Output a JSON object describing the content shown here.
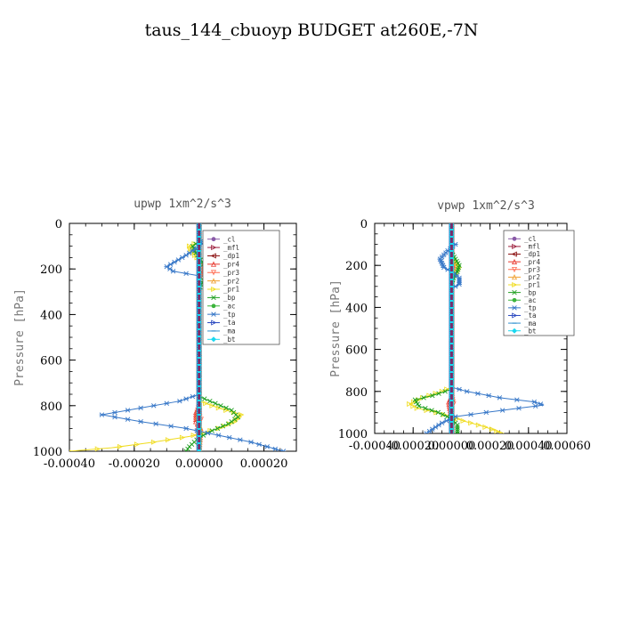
{
  "title": "taus_144_cbuoyp  BUDGET at260E,-7N",
  "legend_labels": [
    "_cl",
    "_mfl",
    "_dp1",
    "_pr4",
    "_pr3",
    "_pr2",
    "_pr1",
    "_bp",
    "_ac",
    "_tp",
    "_ta",
    "_ma",
    "_bt"
  ],
  "chart_data": [
    {
      "type": "line",
      "title": "upwp   1xm^2/s^3",
      "xlabel": "",
      "ylabel": "Pressure [hPa]",
      "xlim": [
        -0.0004,
        0.0003
      ],
      "ylim": [
        1000,
        0
      ],
      "x_ticks": [
        "-0.00040",
        "-0.00020",
        "0.00000",
        "0.00020"
      ],
      "y_ticks": [
        "0",
        "200",
        "400",
        "600",
        "800",
        "1000"
      ],
      "legend_position": "top-right",
      "series": [
        {
          "name": "_cl",
          "color": "#8a5aa8",
          "points": [
            [
              0,
              0
            ],
            [
              0,
              1000
            ]
          ]
        },
        {
          "name": "_mfl",
          "color": "#9c1e3c",
          "points": [
            [
              0,
              0
            ],
            [
              0,
              1000
            ]
          ]
        },
        {
          "name": "_dp1",
          "color": "#8b1010",
          "points": [
            [
              0,
              0
            ],
            [
              0,
              1000
            ]
          ]
        },
        {
          "name": "_pr4",
          "color": "#e8382e",
          "points": [
            [
              0,
              0
            ],
            [
              0,
              150
            ],
            [
              8e-06,
              175
            ],
            [
              5e-06,
              200
            ],
            [
              0,
              250
            ],
            [
              0,
              800
            ],
            [
              -1e-05,
              830
            ],
            [
              -1e-05,
              870
            ],
            [
              5e-06,
              900
            ],
            [
              3e-06,
              950
            ],
            [
              0,
              1000
            ]
          ]
        },
        {
          "name": "_pr3",
          "color": "#ff6a50",
          "points": [
            [
              0,
              0
            ],
            [
              0,
              170
            ],
            [
              1.2e-05,
              190
            ],
            [
              1.2e-05,
              210
            ],
            [
              6e-06,
              230
            ],
            [
              0,
              250
            ],
            [
              0,
              800
            ],
            [
              -6e-06,
              830
            ],
            [
              6e-06,
              860
            ],
            [
              -4e-06,
              890
            ],
            [
              0,
              1000
            ]
          ]
        },
        {
          "name": "_pr2",
          "color": "#f0a030",
          "points": [
            [
              0,
              0
            ],
            [
              0,
              800
            ],
            [
              -4e-06,
              850
            ],
            [
              4e-06,
              900
            ],
            [
              0,
              1000
            ]
          ]
        },
        {
          "name": "_pr1",
          "color": "#f0dc20",
          "points": [
            [
              0,
              0
            ],
            [
              0,
              80
            ],
            [
              -3e-05,
              100
            ],
            [
              -2e-05,
              130
            ],
            [
              0,
              160
            ],
            [
              2e-05,
              180
            ],
            [
              3e-05,
              210
            ],
            [
              2e-05,
              240
            ],
            [
              0,
              270
            ],
            [
              0,
              780
            ],
            [
              6e-05,
              810
            ],
            [
              0.00013,
              840
            ],
            [
              0.00011,
              870
            ],
            [
              6e-05,
              900
            ],
            [
              -3e-05,
              935
            ],
            [
              -0.00014,
              960
            ],
            [
              -0.00027,
              985
            ],
            [
              -0.0004,
              1000
            ]
          ]
        },
        {
          "name": "_bp",
          "color": "#20a020",
          "points": [
            [
              0,
              0
            ],
            [
              0,
              80
            ],
            [
              -2e-05,
              100
            ],
            [
              -1e-05,
              130
            ],
            [
              1e-05,
              170
            ],
            [
              2e-05,
              200
            ],
            [
              2e-05,
              230
            ],
            [
              1e-05,
              260
            ],
            [
              0,
              290
            ],
            [
              0,
              760
            ],
            [
              5e-05,
              790
            ],
            [
              0.0001,
              820
            ],
            [
              0.00012,
              850
            ],
            [
              9e-05,
              880
            ],
            [
              4e-05,
              910
            ],
            [
              0,
              940
            ],
            [
              -3e-05,
              980
            ],
            [
              -4e-05,
              1000
            ]
          ]
        },
        {
          "name": "_ac",
          "color": "#3cb43c",
          "points": [
            [
              0,
              0
            ],
            [
              0,
              1000
            ]
          ]
        },
        {
          "name": "_tp",
          "color": "#3878c8",
          "points": [
            [
              0,
              0
            ],
            [
              0,
              70
            ],
            [
              1e-05,
              90
            ],
            [
              -4e-05,
              140
            ],
            [
              -0.0001,
              190
            ],
            [
              -8e-05,
              210
            ],
            [
              0,
              230
            ],
            [
              0,
              250
            ],
            [
              0,
              750
            ],
            [
              -6e-05,
              780
            ],
            [
              -0.00018,
              810
            ],
            [
              -0.0003,
              840
            ],
            [
              -0.00018,
              870
            ],
            [
              -4e-05,
              900
            ],
            [
              6e-05,
              930
            ],
            [
              0.00016,
              960
            ],
            [
              0.00026,
              1000
            ]
          ]
        },
        {
          "name": "_ta",
          "color": "#2a48c0",
          "points": [
            [
              0,
              0
            ],
            [
              0,
              1000
            ]
          ]
        },
        {
          "name": "_ma",
          "color": "#3090d0",
          "points": [
            [
              0,
              0
            ],
            [
              0,
              1000
            ]
          ]
        },
        {
          "name": "_bt",
          "color": "#1ad8f0",
          "points": [
            [
              0,
              0
            ],
            [
              0,
              1000
            ]
          ]
        }
      ]
    },
    {
      "type": "line",
      "title": "vpwp   1xm^2/s^3",
      "xlabel": "",
      "ylabel": "Pressure [hPa]",
      "xlim": [
        -0.0004,
        0.0006
      ],
      "ylim": [
        1000,
        0
      ],
      "x_ticks": [
        "-0.00040",
        "-0.00020",
        "0.00000",
        "0.00020",
        "0.00040",
        "0.00060"
      ],
      "y_ticks": [
        "0",
        "200",
        "400",
        "600",
        "800",
        "1000"
      ],
      "legend_position": "top-right",
      "series": [
        {
          "name": "_cl",
          "color": "#8a5aa8",
          "points": [
            [
              0,
              0
            ],
            [
              0,
              1000
            ]
          ]
        },
        {
          "name": "_mfl",
          "color": "#9c1e3c",
          "points": [
            [
              0,
              0
            ],
            [
              0,
              1000
            ]
          ]
        },
        {
          "name": "_dp1",
          "color": "#8b1010",
          "points": [
            [
              0,
              0
            ],
            [
              0,
              1000
            ]
          ]
        },
        {
          "name": "_pr4",
          "color": "#e8382e",
          "points": [
            [
              0,
              0
            ],
            [
              0,
              150
            ],
            [
              8e-06,
              180
            ],
            [
              5e-06,
              210
            ],
            [
              0,
              250
            ],
            [
              0,
              820
            ],
            [
              -1.5e-05,
              850
            ],
            [
              -1e-05,
              880
            ],
            [
              5e-06,
              910
            ],
            [
              0,
              1000
            ]
          ]
        },
        {
          "name": "_pr3",
          "color": "#ff6a50",
          "points": [
            [
              0,
              0
            ],
            [
              0,
              180
            ],
            [
              1e-05,
              200
            ],
            [
              8e-06,
              230
            ],
            [
              0,
              260
            ],
            [
              0,
              820
            ],
            [
              1e-05,
              860
            ],
            [
              -8e-06,
              890
            ],
            [
              0,
              1000
            ]
          ]
        },
        {
          "name": "_pr2",
          "color": "#f0a030",
          "points": [
            [
              0,
              0
            ],
            [
              0,
              1000
            ]
          ]
        },
        {
          "name": "_pr1",
          "color": "#f0dc20",
          "points": [
            [
              0,
              0
            ],
            [
              0,
              150
            ],
            [
              2e-05,
              180
            ],
            [
              4e-05,
              210
            ],
            [
              2e-05,
              240
            ],
            [
              0,
              270
            ],
            [
              0,
              780
            ],
            [
              -5e-05,
              800
            ],
            [
              -0.00015,
              830
            ],
            [
              -0.00022,
              860
            ],
            [
              -0.00018,
              880
            ],
            [
              -8e-05,
              900
            ],
            [
              0,
              920
            ],
            [
              6e-05,
              940
            ],
            [
              0.00014,
              960
            ],
            [
              0.00021,
              980
            ],
            [
              0.00026,
              1000
            ]
          ]
        },
        {
          "name": "_bp",
          "color": "#20a020",
          "points": [
            [
              0,
              0
            ],
            [
              0,
              140
            ],
            [
              2e-05,
              170
            ],
            [
              4e-05,
              200
            ],
            [
              3e-05,
              230
            ],
            [
              1e-05,
              260
            ],
            [
              0,
              290
            ],
            [
              0,
              790
            ],
            [
              -0.0001,
              820
            ],
            [
              -0.00019,
              840
            ],
            [
              -0.00017,
              870
            ],
            [
              -7e-05,
              900
            ],
            [
              0,
              930
            ],
            [
              3e-05,
              960
            ],
            [
              3e-05,
              1000
            ]
          ]
        },
        {
          "name": "_ac",
          "color": "#3cb43c",
          "points": [
            [
              0,
              0
            ],
            [
              0,
              1000
            ]
          ]
        },
        {
          "name": "_tp",
          "color": "#3878c8",
          "points": [
            [
              0,
              0
            ],
            [
              0,
              90
            ],
            [
              2e-05,
              100
            ],
            [
              -2e-05,
              130
            ],
            [
              -6e-05,
              170
            ],
            [
              -4e-05,
              210
            ],
            [
              0,
              230
            ],
            [
              4e-05,
              260
            ],
            [
              4e-05,
              290
            ],
            [
              0,
              310
            ],
            [
              0,
              780
            ],
            [
              8e-05,
              800
            ],
            [
              0.00025,
              830
            ],
            [
              0.00043,
              850
            ],
            [
              0.00048,
              865
            ],
            [
              0.00035,
              880
            ],
            [
              0.00018,
              900
            ],
            [
              2e-05,
              920
            ],
            [
              -5e-05,
              950
            ],
            [
              -0.0001,
              980
            ],
            [
              -0.00013,
              1000
            ]
          ]
        },
        {
          "name": "_ta",
          "color": "#2a48c0",
          "points": [
            [
              0,
              0
            ],
            [
              0,
              1000
            ]
          ]
        },
        {
          "name": "_ma",
          "color": "#3090d0",
          "points": [
            [
              0,
              0
            ],
            [
              0,
              1000
            ]
          ]
        },
        {
          "name": "_bt",
          "color": "#1ad8f0",
          "points": [
            [
              0,
              0
            ],
            [
              0,
              1000
            ]
          ]
        }
      ]
    }
  ]
}
